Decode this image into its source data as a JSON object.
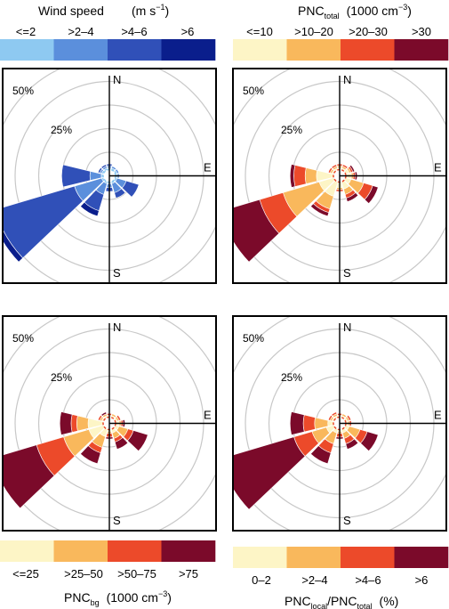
{
  "legends": {
    "wind": {
      "title": "Wind speed",
      "unit_prefix": "(m s",
      "unit_sup": "−1",
      "unit_suffix": ")",
      "bins": [
        "<=2",
        ">2–4",
        ">4–6",
        ">6"
      ],
      "colors": [
        "#8ec9f1",
        "#5b8fdc",
        "#3050b8",
        "#0a1e8c"
      ]
    },
    "pnc_total": {
      "title_main": "PNC",
      "title_sub": "total",
      "unit_prefix": "(1000 cm",
      "unit_sup": "−3",
      "unit_suffix": ")",
      "bins": [
        "<=10",
        ">10–20",
        ">20–30",
        ">30"
      ],
      "colors": [
        "#fdf5c6",
        "#f9b85c",
        "#ec4a2a",
        "#7b0a2a"
      ]
    },
    "pnc_bg": {
      "title_main": "PNC",
      "title_sub": "bg",
      "unit_prefix": "(1000 cm",
      "unit_sup": "−3",
      "unit_suffix": ")",
      "bins": [
        "<=25",
        ">25–50",
        ">50–75",
        ">75"
      ],
      "colors": [
        "#fdf5c6",
        "#f9b85c",
        "#ec4a2a",
        "#7b0a2a"
      ]
    },
    "pnc_ratio": {
      "title_main1": "PNC",
      "title_sub1": "local",
      "title_sep": "/PNC",
      "title_sub2": "total",
      "unit": "(%)",
      "bins": [
        "0–2",
        ">2–4",
        ">4–6",
        ">6"
      ],
      "colors": [
        "#fdf5c6",
        "#f9b85c",
        "#ec4a2a",
        "#7b0a2a"
      ]
    }
  },
  "compass": {
    "n": "N",
    "e": "E",
    "s": "S"
  },
  "ring_labels": [
    "50%",
    "25%"
  ],
  "chart_data": [
    {
      "type": "windrose",
      "panel": "wind speed",
      "ring_levels_percent": [
        25,
        50
      ],
      "ring_labels": [
        "25%",
        "50%"
      ],
      "directions_deg": [
        0,
        30,
        60,
        90,
        120,
        150,
        180,
        210,
        240,
        270,
        300,
        330
      ],
      "stack_bins": [
        "<=2",
        ">2–4",
        ">4–6",
        ">6"
      ],
      "colors": [
        "#8ec9f1",
        "#5b8fdc",
        "#3050b8",
        "#0a1e8c"
      ],
      "cumulative_percent": [
        [
          1,
          2,
          3,
          3
        ],
        [
          1,
          2,
          2,
          2
        ],
        [
          1,
          2,
          2,
          2
        ],
        [
          1,
          2,
          2,
          2
        ],
        [
          1,
          6,
          13,
          13
        ],
        [
          1,
          6,
          9,
          9
        ],
        [
          1,
          3,
          5,
          5
        ],
        [
          1,
          7,
          16,
          19
        ],
        [
          1,
          16,
          60,
          63
        ],
        [
          1,
          7,
          22,
          22
        ],
        [
          1,
          2,
          3,
          3
        ],
        [
          1,
          2,
          3,
          3
        ]
      ]
    },
    {
      "type": "windrose",
      "panel": "PNC total",
      "ring_levels_percent": [
        25,
        50
      ],
      "ring_labels": [
        "25%",
        "50%"
      ],
      "directions_deg": [
        0,
        30,
        60,
        90,
        120,
        150,
        180,
        210,
        240,
        270,
        300,
        330
      ],
      "stack_bins": [
        "<=10",
        ">10–20",
        ">20–30",
        ">30"
      ],
      "colors": [
        "#fdf5c6",
        "#f9b85c",
        "#ec4a2a",
        "#7b0a2a"
      ],
      "cumulative_percent": [
        [
          1,
          2,
          3,
          3
        ],
        [
          1,
          2,
          3,
          3
        ],
        [
          2,
          3,
          4,
          5
        ],
        [
          3,
          4,
          5,
          6
        ],
        [
          3,
          10,
          15,
          18
        ],
        [
          4,
          7,
          9,
          11
        ],
        [
          3,
          4,
          5,
          5
        ],
        [
          8,
          15,
          17,
          19
        ],
        [
          8,
          28,
          41,
          63
        ],
        [
          9,
          15,
          21,
          23
        ],
        [
          1,
          2,
          3,
          3
        ],
        [
          1,
          2,
          3,
          3
        ]
      ]
    },
    {
      "type": "windrose",
      "panel": "PNC bg",
      "ring_levels_percent": [
        25,
        50
      ],
      "ring_labels": [
        "25%",
        "50%"
      ],
      "directions_deg": [
        0,
        30,
        60,
        90,
        120,
        150,
        180,
        210,
        240,
        270,
        300,
        330
      ],
      "stack_bins": [
        "<=25",
        ">25–50",
        ">50–75",
        ">75"
      ],
      "colors": [
        "#fdf5c6",
        "#f9b85c",
        "#ec4a2a",
        "#7b0a2a"
      ],
      "cumulative_percent": [
        [
          1,
          1,
          2,
          2
        ],
        [
          1,
          2,
          2,
          2
        ],
        [
          1,
          2,
          3,
          3
        ],
        [
          2,
          3,
          4,
          5
        ],
        [
          2,
          7,
          10,
          18
        ],
        [
          2,
          5,
          7,
          11
        ],
        [
          1,
          2,
          4,
          5
        ],
        [
          4,
          10,
          13,
          19
        ],
        [
          8,
          22,
          37,
          62
        ],
        [
          8,
          14,
          17,
          23
        ],
        [
          1,
          2,
          3,
          3
        ],
        [
          1,
          2,
          2,
          3
        ]
      ]
    },
    {
      "type": "windrose",
      "panel": "PNC local / PNC total",
      "ring_levels_percent": [
        25,
        50
      ],
      "ring_labels": [
        "25%",
        "50%"
      ],
      "directions_deg": [
        0,
        30,
        60,
        90,
        120,
        150,
        180,
        210,
        240,
        270,
        300,
        330
      ],
      "stack_bins": [
        "0–2",
        ">2–4",
        ">4–6",
        ">6"
      ],
      "colors": [
        "#fdf5c6",
        "#f9b85c",
        "#ec4a2a",
        "#7b0a2a"
      ],
      "cumulative_percent": [
        [
          1,
          1,
          2,
          2
        ],
        [
          1,
          2,
          2,
          2
        ],
        [
          1,
          2,
          3,
          3
        ],
        [
          1,
          2,
          3,
          3
        ],
        [
          2,
          8,
          12,
          18
        ],
        [
          2,
          5,
          8,
          11
        ],
        [
          1,
          2,
          4,
          5
        ],
        [
          2,
          8,
          13,
          19
        ],
        [
          4,
          12,
          22,
          63
        ],
        [
          3,
          10,
          16,
          23
        ],
        [
          1,
          2,
          3,
          3
        ],
        [
          1,
          2,
          3,
          3
        ]
      ]
    }
  ]
}
